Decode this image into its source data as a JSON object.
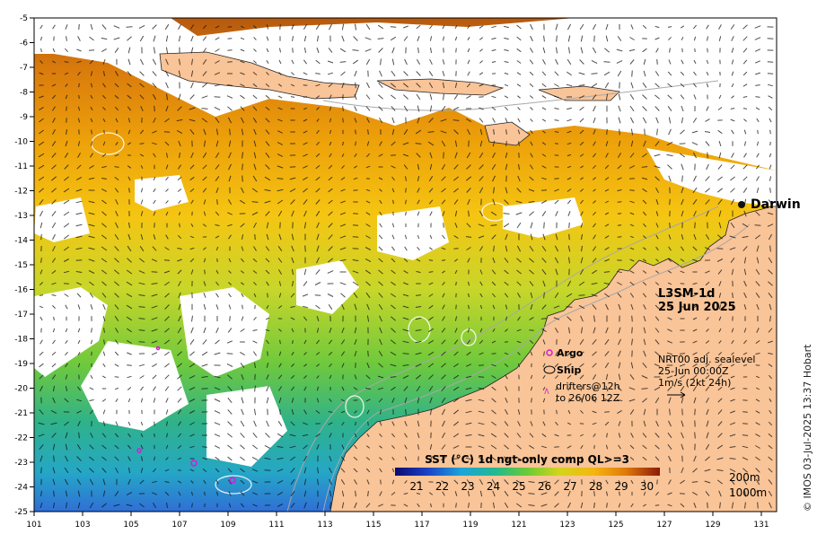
{
  "map": {
    "title": "L3SM-1d",
    "date": "25 Jun 2025",
    "place_label": "Darwin",
    "lon_ticks": [
      "101",
      "103",
      "105",
      "107",
      "109",
      "111",
      "113",
      "115",
      "117",
      "119",
      "121",
      "123",
      "125",
      "127",
      "129",
      "131"
    ],
    "lat_ticks": [
      "-5",
      "-6",
      "-7",
      "-8",
      "-9",
      "-10",
      "-11",
      "-12",
      "-13",
      "-14",
      "-15",
      "-16",
      "-17",
      "-18",
      "-19",
      "-20",
      "-21",
      "-22",
      "-23",
      "-24",
      "-25"
    ]
  },
  "legend": {
    "argo": "Argo",
    "ship": "Ship",
    "drifters_line1": "drifters@12h",
    "drifters_line2": "to 26/06 12Z",
    "sealevel_line1": "NRT00 adj. sealevel",
    "sealevel_line2": "25-Jun 00:00Z",
    "sealevel_line3": "1m/s (2kt 24h)",
    "depth_200": "200m",
    "depth_1000": "1000m"
  },
  "colorbar": {
    "title": "SST (°C) 1d ngt-only comp QL>=3",
    "ticks": [
      "21",
      "22",
      "23",
      "24",
      "25",
      "26",
      "27",
      "28",
      "29",
      "30"
    ]
  },
  "credit": "© IMOS 03-Jul-2025 13:37 Hobart",
  "colors": {
    "land": "#f9c497",
    "cold": "#1e2ea0",
    "warm": "#b5530f",
    "marker": "#d81ad8"
  }
}
